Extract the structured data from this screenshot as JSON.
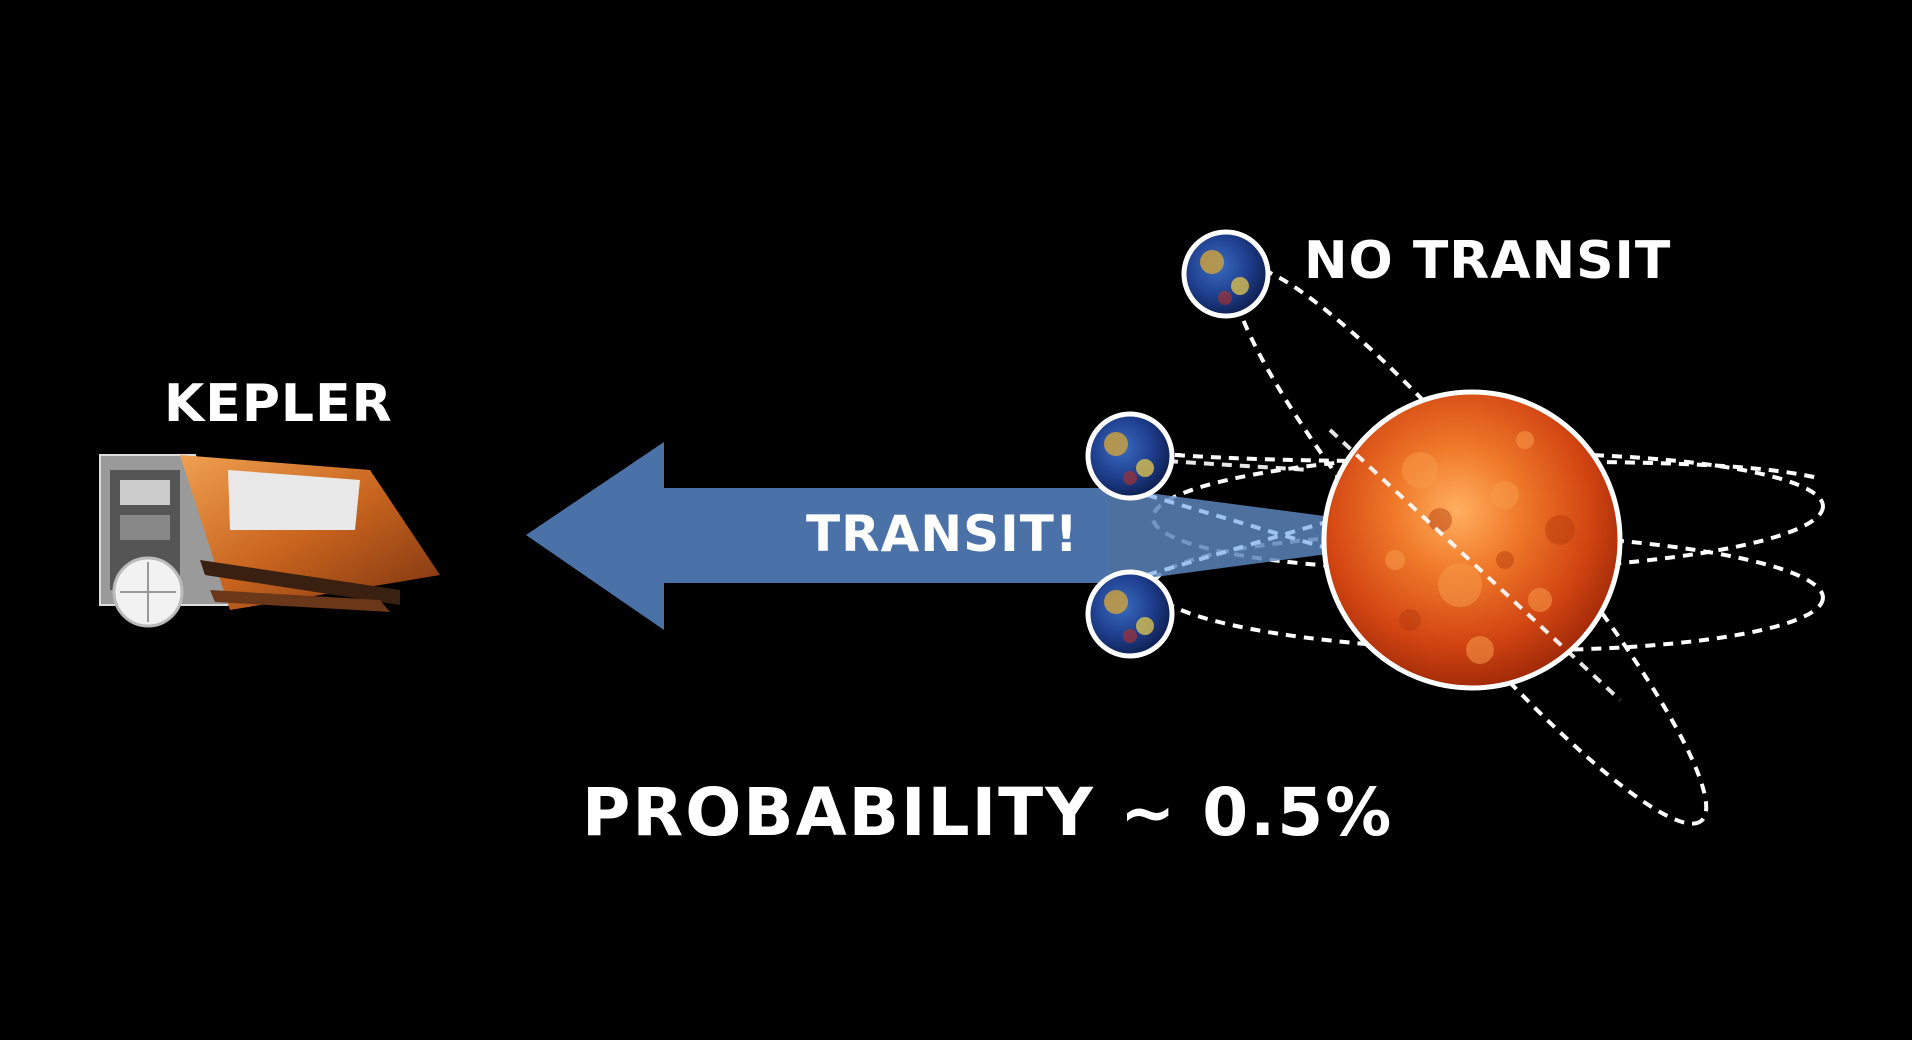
{
  "labels": {
    "kepler": "KEPLER",
    "no_transit": "NO TRANSIT",
    "transit": "TRANSIT!",
    "probability": "PROBABILITY ~ 0.5%"
  },
  "icons": {
    "telescope": "kepler-spacecraft-icon",
    "star": "sun-star-icon",
    "planet": "earth-planet-icon"
  },
  "colors": {
    "background": "#000000",
    "arrow": "#4a72a8",
    "star": "#d9480f",
    "text": "#ffffff",
    "orbit_line": "#ffffff"
  }
}
